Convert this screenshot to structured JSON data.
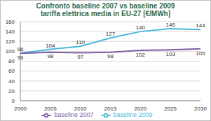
{
  "chart_data": {
    "type": "line",
    "title": "Confronto baseline 2007 vs baseline 2009",
    "subtitle": "tariffa elettrica media in EU-27 [€/MWh]",
    "categories": [
      "2000",
      "2005",
      "2010",
      "2015",
      "2020",
      "2025",
      "2030"
    ],
    "series": [
      {
        "name": "baseline 2009",
        "color": "#4BB8D9",
        "values": [
          96,
          104,
          110,
          127,
          140,
          146,
          144
        ]
      },
      {
        "name": "baseline 2007",
        "color": "#7E5FA6",
        "values": [
          96,
          98,
          97,
          98,
          102,
          103,
          105
        ]
      }
    ],
    "ylim": [
      0,
      160
    ],
    "yticks": [
      0,
      20,
      40,
      60,
      80,
      100,
      120,
      140,
      160
    ],
    "grid": true,
    "legend": "bottom",
    "data_labels": true
  }
}
